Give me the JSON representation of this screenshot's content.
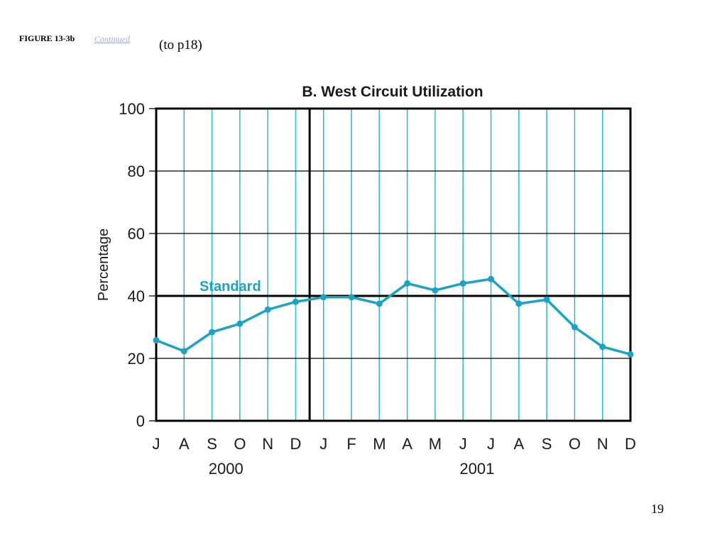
{
  "header": {
    "figure_label": "FIGURE 13-3b",
    "continued_link": "Continued",
    "to_page": "(to p18)"
  },
  "page_number": "19",
  "chart_data": {
    "type": "line",
    "title": "B. West Circuit Utilization",
    "ylabel": "Percentage",
    "xlabel": "",
    "ylim": [
      0,
      100
    ],
    "yticks": [
      0,
      20,
      40,
      60,
      80,
      100
    ],
    "categories": [
      "J",
      "A",
      "S",
      "O",
      "N",
      "D",
      "J",
      "F",
      "M",
      "A",
      "M",
      "J",
      "J",
      "A",
      "S",
      "O",
      "N",
      "D"
    ],
    "year_groups": [
      {
        "label": "2000",
        "start_index": 0,
        "end_index": 5
      },
      {
        "label": "2001",
        "start_index": 6,
        "end_index": 17
      }
    ],
    "series": [
      {
        "values": [
          25.8,
          22.3,
          28.4,
          31.1,
          35.6,
          38.1,
          39.6,
          39.6,
          37.5,
          44.0,
          41.8,
          44.0,
          45.4,
          37.5,
          38.8,
          30.0,
          23.7,
          21.3
        ]
      }
    ],
    "reference_line": {
      "label": "Standard",
      "value": 40
    },
    "grid": true,
    "colors": {
      "series": "#1ba3c6",
      "vgrid": "#2db5d3",
      "hgrid": "#000000",
      "standard_label": "#1ba3c6"
    }
  }
}
